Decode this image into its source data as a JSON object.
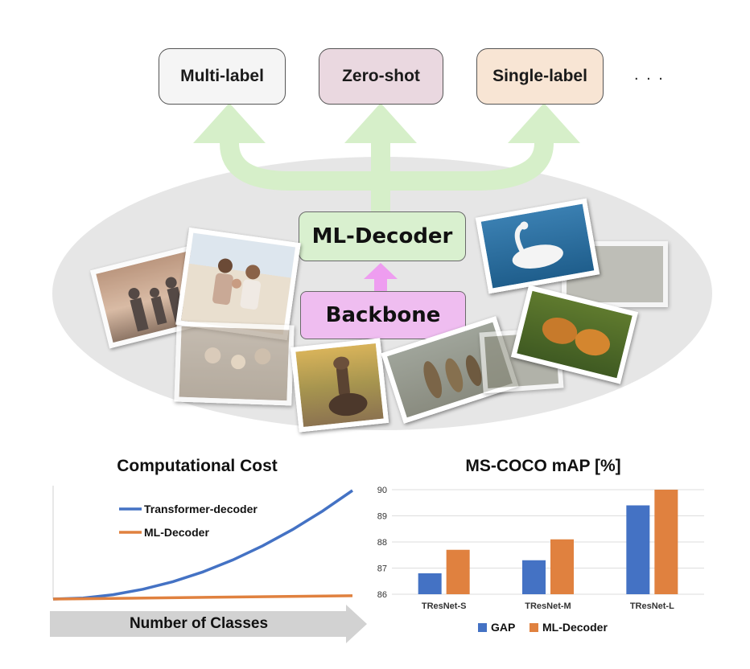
{
  "tasks": [
    {
      "label": "Multi-label",
      "color": "#f5f5f5"
    },
    {
      "label": "Zero-shot",
      "color": "#ead8e0"
    },
    {
      "label": "Single-label",
      "color": "#f8e5d4"
    }
  ],
  "tasks_more": ". . .",
  "ml_decoder_label": "ML-Decoder",
  "backbone_label": "Backbone",
  "colors": {
    "ellipse": "#e6e6e6",
    "green_arrow": "#d6efc9",
    "pink_arrow": "#ee9df0",
    "gap": "#4472c4",
    "ml_decoder": "#e0813f"
  },
  "cost_chart": {
    "title": "Computational Cost",
    "xlabel": "Number of Classes",
    "legend": [
      "Transformer-decoder",
      "ML-Decoder"
    ]
  },
  "chart_data": [
    {
      "type": "line",
      "title": "Computational Cost",
      "xlabel": "Number of Classes",
      "ylabel": "",
      "series": [
        {
          "name": "Transformer-decoder",
          "x": [
            0,
            0.1,
            0.2,
            0.3,
            0.4,
            0.5,
            0.6,
            0.7,
            0.8,
            0.9,
            1.0
          ],
          "y": [
            0,
            0.01,
            0.04,
            0.09,
            0.16,
            0.25,
            0.36,
            0.49,
            0.64,
            0.81,
            1.0
          ]
        },
        {
          "name": "ML-Decoder",
          "x": [
            0,
            1.0
          ],
          "y": [
            0,
            0.03
          ]
        }
      ]
    },
    {
      "type": "bar",
      "title": "MS-COCO mAP [%]",
      "categories": [
        "TResNet-S",
        "TResNet-M",
        "TResNet-L"
      ],
      "series": [
        {
          "name": "GAP",
          "values": [
            86.8,
            87.3,
            89.4
          ]
        },
        {
          "name": "ML-Decoder",
          "values": [
            87.7,
            88.1,
            90.0
          ]
        }
      ],
      "ylim": [
        86,
        90
      ],
      "yticks": [
        86,
        87,
        88,
        89,
        90
      ],
      "grid": true,
      "legend": "bottom"
    }
  ]
}
